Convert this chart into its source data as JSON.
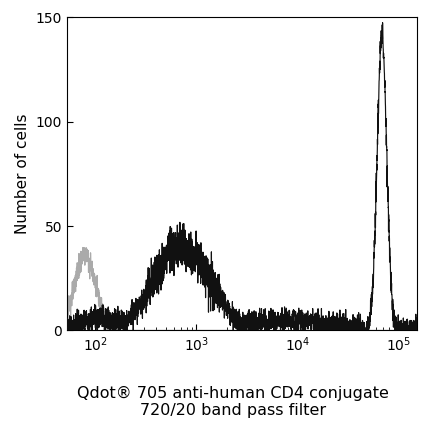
{
  "title_line1": "Qdot® 705 anti-human CD4 conjugate",
  "title_line2": "720/20 band pass filter",
  "ylabel": "Number of cells",
  "xlim_log": [
    1.72,
    5.18
  ],
  "ylim": [
    0,
    150
  ],
  "yticks": [
    0,
    50,
    100,
    150
  ],
  "background_color": "#ffffff",
  "plot_bg": "#ffffff",
  "gray_color": "#aaaaaa",
  "black_color": "#111111",
  "title_fontsize": 11.5,
  "axis_label_fontsize": 11,
  "tick_fontsize": 10,
  "lw_gray": 0.9,
  "lw_black": 0.85
}
